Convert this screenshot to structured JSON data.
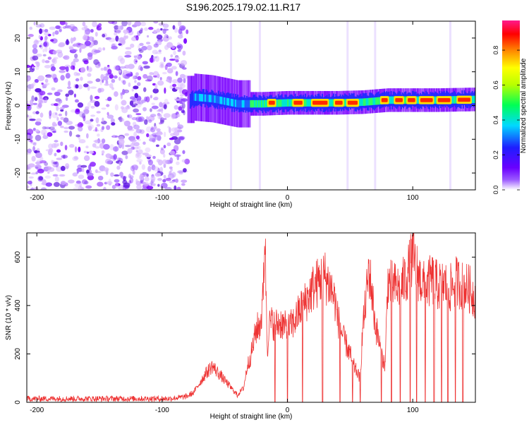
{
  "page_title": "S196.2025.179.02.11.R17",
  "colorbar": {
    "label": "Normalized spectral amplitude",
    "tick_labels": [
      "0.0",
      "0.2",
      "0.4",
      "0.6",
      "0.8"
    ],
    "tick_values": [
      0.0,
      0.2,
      0.4,
      0.6,
      0.8
    ],
    "range": [
      0,
      0.97
    ],
    "colormap": [
      "#ffffff",
      "#7a00ff",
      "#2020ff",
      "#00e5ff",
      "#00ff00",
      "#ffff00",
      "#ff7f00",
      "#ff0000",
      "#ff1493"
    ]
  },
  "chart_data": [
    {
      "type": "heatmap",
      "title": "",
      "xlabel": "Height of straight line (km)",
      "ylabel": "Frequency (Hz)",
      "xlim": [
        -208,
        150
      ],
      "ylim": [
        -25,
        25
      ],
      "x_tick_values": [
        -200,
        -100,
        0,
        100
      ],
      "x_tick_labels": [
        "-200",
        "-100",
        "0",
        "100"
      ],
      "y_tick_values": [
        -20,
        -10,
        0,
        10,
        20
      ],
      "y_tick_labels": [
        "-20",
        "-10",
        "0",
        "10",
        "20"
      ],
      "grid": false,
      "description_points": {
        "noise_region_x": [
          -208,
          -80
        ],
        "carrier_track": [
          {
            "x": -75,
            "f": 2.5
          },
          {
            "x": -60,
            "f": 2.0
          },
          {
            "x": -40,
            "f": 0.5
          },
          {
            "x": -20,
            "f": 0.5
          },
          {
            "x": 0,
            "f": 0.8
          },
          {
            "x": 20,
            "f": 0.8
          },
          {
            "x": 40,
            "f": 0.8
          },
          {
            "x": 60,
            "f": 1.0
          },
          {
            "x": 80,
            "f": 1.6
          },
          {
            "x": 100,
            "f": 1.6
          },
          {
            "x": 120,
            "f": 1.6
          },
          {
            "x": 148,
            "f": 1.8
          }
        ],
        "peak_amplitude_segments": [
          {
            "x": [
              -15,
              -10
            ],
            "f": 0.8
          },
          {
            "x": [
              5,
              12
            ],
            "f": 0.8
          },
          {
            "x": [
              20,
              32
            ],
            "f": 0.8
          },
          {
            "x": [
              38,
              44
            ],
            "f": 0.8
          },
          {
            "x": [
              48,
              56
            ],
            "f": 0.8
          },
          {
            "x": [
              75,
              80
            ],
            "f": 1.6
          },
          {
            "x": [
              86,
              92
            ],
            "f": 1.6
          },
          {
            "x": [
              96,
              102
            ],
            "f": 1.6
          },
          {
            "x": [
              106,
              116
            ],
            "f": 1.6
          },
          {
            "x": [
              120,
              130
            ],
            "f": 1.6
          },
          {
            "x": [
              136,
              146
            ],
            "f": 1.7
          }
        ]
      }
    },
    {
      "type": "line",
      "title": "",
      "xlabel": "Height of straight line (km)",
      "ylabel": "SNR (10 * v/v)",
      "xlim": [
        -208,
        150
      ],
      "ylim": [
        0,
        700
      ],
      "x_tick_values": [
        -200,
        -100,
        0,
        100
      ],
      "x_tick_labels": [
        "-200",
        "-100",
        "0",
        "100"
      ],
      "y_tick_values": [
        0,
        200,
        400,
        600
      ],
      "y_tick_labels": [
        "0",
        "200",
        "400",
        "600"
      ],
      "grid": false,
      "line_color": "#ee3333",
      "series": [
        {
          "x": [
            -208,
            -190,
            -170,
            -150,
            -130,
            -110,
            -95,
            -85,
            -80,
            -75,
            -70,
            -65,
            -60,
            -55,
            -50,
            -45,
            -40,
            -35,
            -32,
            -30,
            -28,
            -25,
            -22,
            -20,
            -18,
            -16,
            -15,
            -12,
            -10,
            -5,
            0,
            5,
            10,
            15,
            20,
            25,
            30,
            35,
            38,
            40,
            45,
            50,
            52,
            55,
            58,
            60,
            62,
            65,
            68,
            70,
            72,
            75,
            78,
            80,
            82,
            85,
            90,
            95,
            100,
            105,
            110,
            115,
            120,
            125,
            130,
            135,
            140,
            145,
            150
          ],
          "y": [
            15,
            15,
            15,
            15,
            15,
            15,
            15,
            20,
            25,
            40,
            80,
            120,
            150,
            120,
            90,
            60,
            30,
            60,
            150,
            180,
            220,
            300,
            320,
            380,
            700,
            200,
            320,
            330,
            320,
            330,
            300,
            330,
            380,
            420,
            470,
            500,
            520,
            470,
            420,
            350,
            260,
            200,
            160,
            130,
            100,
            300,
            390,
            550,
            430,
            320,
            280,
            200,
            150,
            500,
            490,
            480,
            470,
            520,
            600,
            520,
            470,
            510,
            480,
            490,
            470,
            500,
            480,
            470,
            430
          ]
        }
      ],
      "dropouts_to_zero_x": [
        -10,
        0,
        12,
        28,
        42,
        52,
        58,
        75,
        83,
        90,
        98,
        103,
        110,
        117,
        123,
        128,
        134,
        140
      ]
    }
  ]
}
